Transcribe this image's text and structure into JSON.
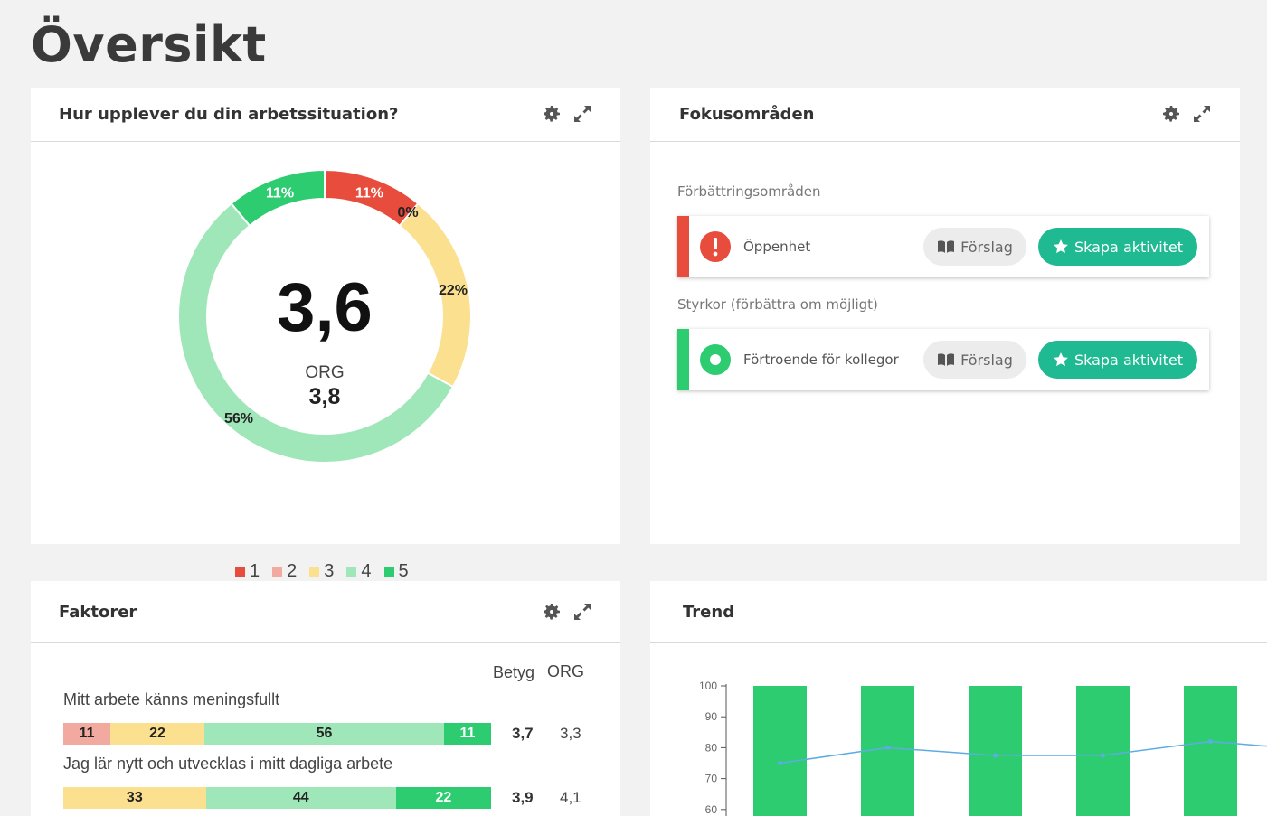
{
  "page": {
    "title": "Översikt"
  },
  "colors": {
    "c1": "#e74c3c",
    "c2": "#f1a9a0",
    "c3": "#fbe08f",
    "c4": "#9fe6b8",
    "c5": "#2ecc71",
    "accent": "#1fb992"
  },
  "work_situation": {
    "title": "Hur upplever du din arbetssituation?",
    "score": "3,6",
    "org_label": "ORG",
    "org_score": "3,8",
    "chart_data": {
      "type": "pie",
      "categories": [
        "1",
        "2",
        "3",
        "4",
        "5"
      ],
      "values": [
        11,
        0,
        22,
        56,
        11
      ],
      "labels": [
        "11%",
        "0%",
        "22%",
        "56%",
        "11%"
      ]
    },
    "legend": [
      "1",
      "2",
      "3",
      "4",
      "5"
    ]
  },
  "focus": {
    "title": "Fokusområden",
    "improve_label": "Förbättringsområden",
    "strengths_label": "Styrkor (förbättra om möjligt)",
    "improve_item": {
      "label": "Öppenhet",
      "suggest": "Förslag",
      "create": "Skapa aktivitet"
    },
    "strength_item": {
      "label": "Förtroende för kollegor",
      "suggest": "Förslag",
      "create": "Skapa aktivitet"
    }
  },
  "factors": {
    "title": "Faktorer",
    "col_score": "Betyg",
    "col_org": "ORG",
    "rows": [
      {
        "label": "Mitt arbete känns meningsfullt",
        "segments": [
          11,
          22,
          56,
          11
        ],
        "segment_classes": [
          "c2",
          "c3",
          "c4",
          "c5"
        ],
        "score": "3,7",
        "org": "3,3"
      },
      {
        "label": "Jag lär nytt och utvecklas i mitt dagliga arbete",
        "segments": [
          33,
          44,
          22
        ],
        "segment_classes": [
          "c3",
          "c4",
          "c5"
        ],
        "score": "3,9",
        "org": "4,1"
      }
    ]
  },
  "trend": {
    "title": "Trend",
    "chart_data": {
      "type": "bar",
      "y_ticks": [
        "100",
        "90",
        "80",
        "70",
        "60"
      ],
      "ylim": [
        60,
        100
      ],
      "categories": [
        "",
        "",
        "",
        "",
        ""
      ],
      "series": [
        {
          "values": [
            100,
            100,
            100,
            100,
            100
          ]
        },
        {
          "values": [
            75,
            80,
            77.5,
            77.5,
            82
          ]
        }
      ]
    }
  }
}
